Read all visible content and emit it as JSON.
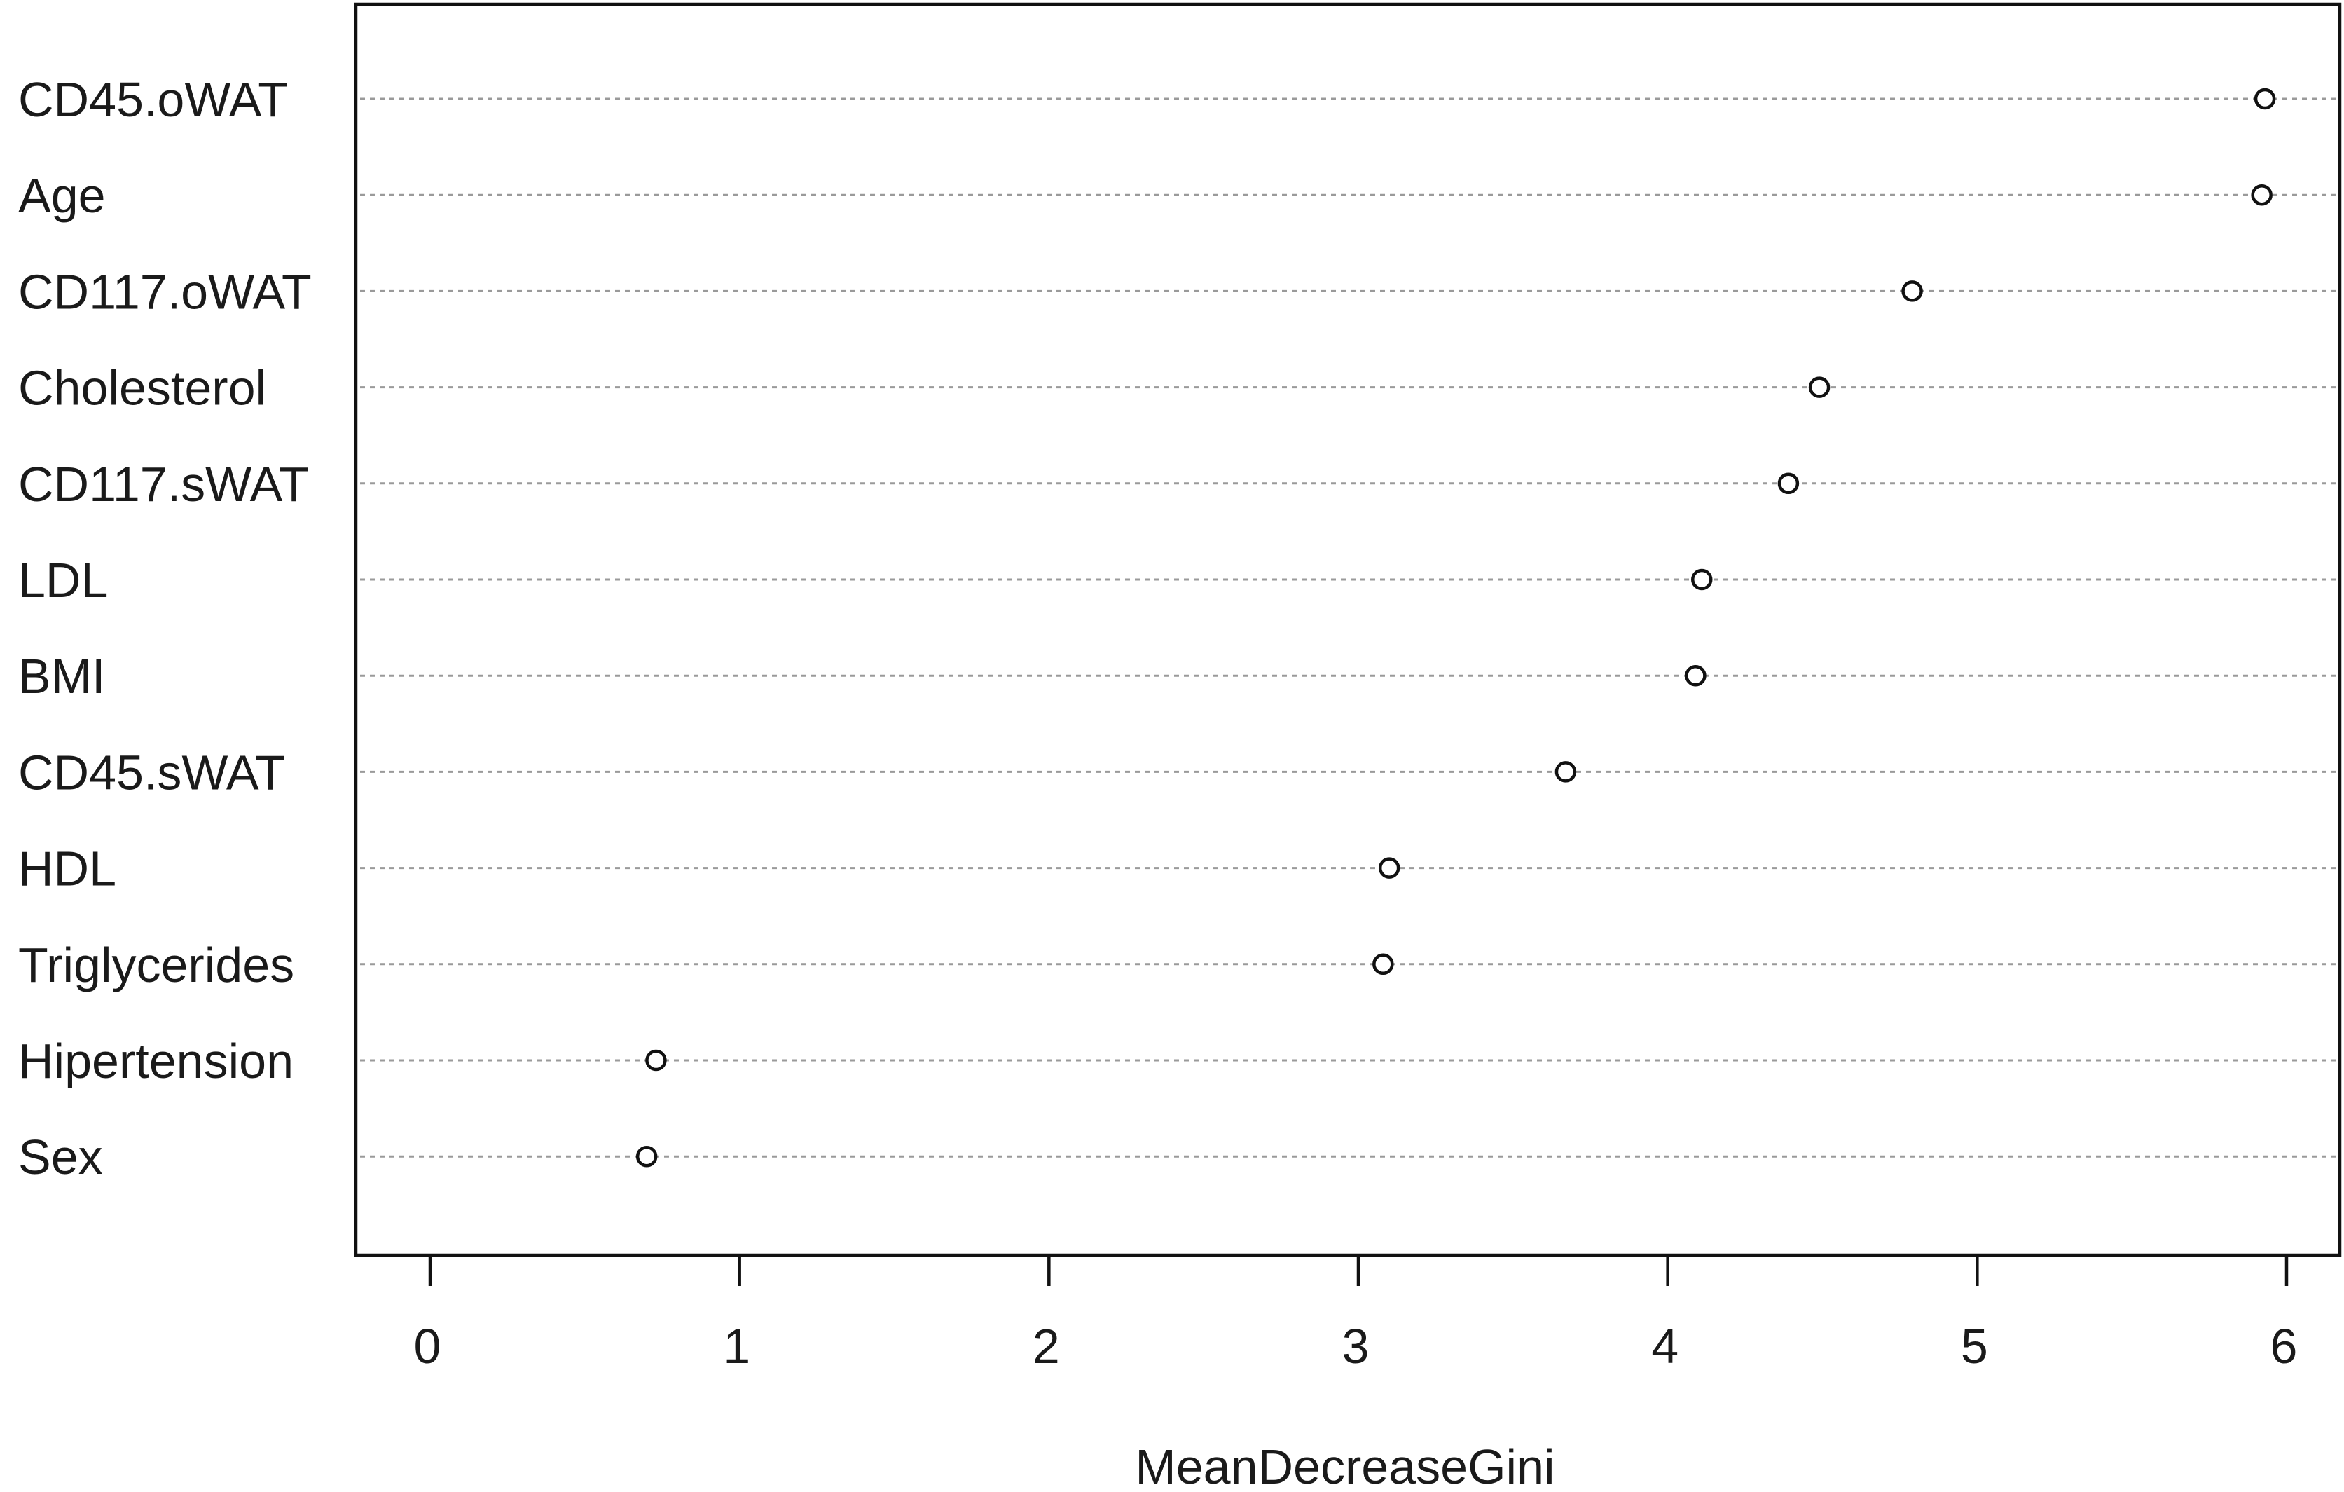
{
  "chart_data": {
    "type": "scatter",
    "title": "",
    "xlabel": "MeanDecreaseGini",
    "ylabel": "",
    "xlim": [
      0,
      6
    ],
    "xticks": [
      "0",
      "1",
      "2",
      "3",
      "4",
      "5",
      "6"
    ],
    "grid": "horizontal dotted lines per category",
    "legend": "none",
    "marker": "open circle",
    "categories": [
      "CD45.oWAT",
      "Age",
      "CD117.oWAT",
      "Cholesterol",
      "CD117.sWAT",
      "LDL",
      "BMI",
      "CD45.sWAT",
      "HDL",
      "Triglycerides",
      "Hipertension",
      "Sex"
    ],
    "values": [
      5.93,
      5.92,
      4.79,
      4.49,
      4.39,
      4.11,
      4.09,
      3.67,
      3.1,
      3.08,
      0.73,
      0.7
    ]
  }
}
